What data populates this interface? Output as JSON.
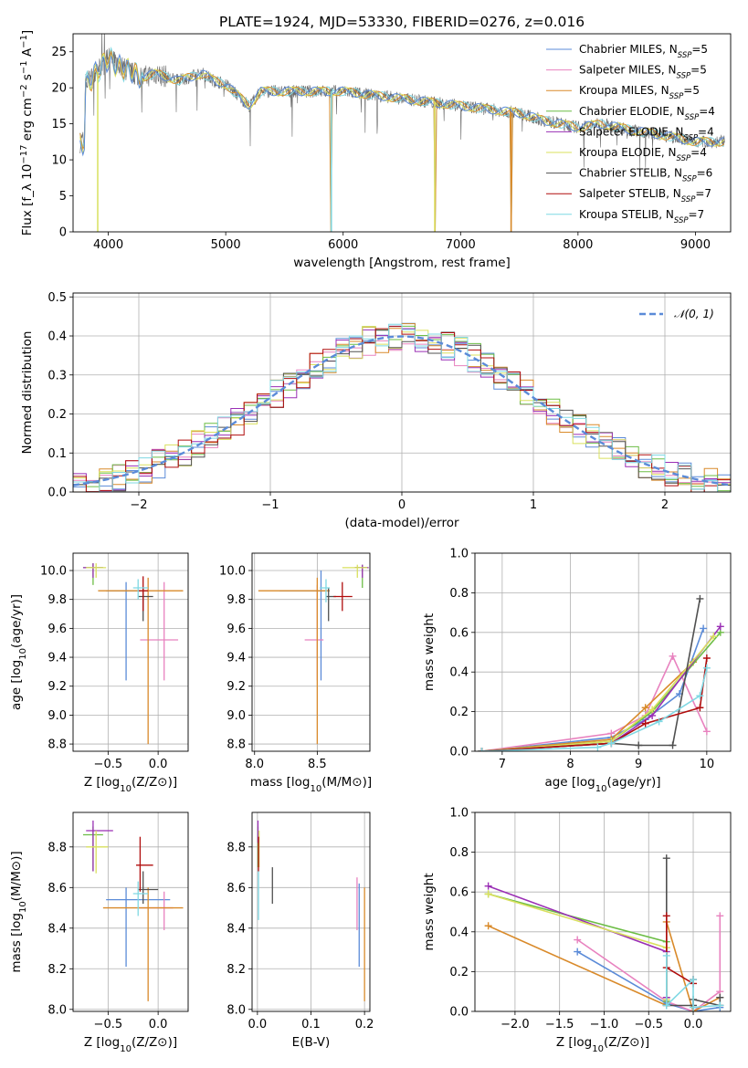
{
  "figure": {
    "title": "PLATE=1924, MJD=53330, FIBERID=0276, z=0.016"
  },
  "colors": {
    "chabrier_miles": "#5b8bd8",
    "salpeter_miles": "#e882bf",
    "kroupa_miles": "#d98a2a",
    "chabrier_elodie": "#6cbd45",
    "salpeter_elodie": "#9a2fb5",
    "kroupa_elodie": "#d9e05e",
    "chabrier_stelib": "#505050",
    "salpeter_stelib": "#b00d0d",
    "kroupa_stelib": "#7fd8e3",
    "data": "#6b6b6b",
    "gauss": "#5b8bd8",
    "grid": "#b0b0b0"
  },
  "legend_spectrum": [
    {
      "name": "Chabrier MILES",
      "n": "5"
    },
    {
      "name": "Salpeter MILES",
      "n": "5"
    },
    {
      "name": "Kroupa MILES",
      "n": "5"
    },
    {
      "name": "Chabrier ELODIE",
      "n": "4"
    },
    {
      "name": "Salpeter ELODIE",
      "n": "4"
    },
    {
      "name": "Kroupa ELODIE",
      "n": "4"
    },
    {
      "name": "Chabrier STELIB",
      "n": "6"
    },
    {
      "name": "Salpeter STELIB",
      "n": "7"
    },
    {
      "name": "Kroupa STELIB",
      "n": "7"
    }
  ],
  "legend_hist": {
    "label": "𝒩(0, 1)"
  },
  "chart_data": [
    {
      "id": "spectrum",
      "type": "line",
      "title": "PLATE=1924, MJD=53330, FIBERID=0276, z=0.016",
      "xlabel": "wavelength [Angstrom, rest frame]",
      "ylabel": "Flux [f_λ 10^-17 erg cm^-2 s^-1 A^-1]",
      "xlim": [
        3700,
        9300
      ],
      "ylim": [
        0,
        27.5
      ],
      "xticks": [
        4000,
        5000,
        6000,
        7000,
        8000,
        9000
      ],
      "yticks": [
        0,
        5,
        10,
        15,
        20,
        25
      ],
      "continuum": [
        [
          3800,
          20.5
        ],
        [
          3900,
          22
        ],
        [
          4000,
          24
        ],
        [
          4100,
          23
        ],
        [
          4200,
          22
        ],
        [
          4300,
          21.5
        ],
        [
          4400,
          22
        ],
        [
          4600,
          21
        ],
        [
          4800,
          22
        ],
        [
          4900,
          21
        ],
        [
          5000,
          20.5
        ],
        [
          5200,
          17.5
        ],
        [
          5300,
          19.5
        ],
        [
          5500,
          19.5
        ],
        [
          6000,
          19.5
        ],
        [
          6500,
          18.5
        ],
        [
          7000,
          17.5
        ],
        [
          7500,
          16.5
        ],
        [
          7700,
          15.5
        ],
        [
          8000,
          14.5
        ],
        [
          8200,
          15
        ],
        [
          8500,
          14
        ],
        [
          8700,
          13.5
        ],
        [
          9000,
          12.5
        ],
        [
          9250,
          12.5
        ]
      ],
      "dips": [
        {
          "x": 3910,
          "y": 0
        },
        {
          "x": 5900,
          "y": 0
        },
        {
          "x": 6780,
          "y": 0
        },
        {
          "x": 7430,
          "y": 0
        }
      ]
    },
    {
      "id": "residuals",
      "type": "bar",
      "xlabel": "(data-model)/error",
      "ylabel": "Normed distribution",
      "xlim": [
        -2.5,
        2.5
      ],
      "ylim": [
        0,
        0.51
      ],
      "xticks": [
        -2,
        -1,
        0,
        1,
        2
      ],
      "yticks": [
        0.0,
        0.1,
        0.2,
        0.3,
        0.4,
        0.5
      ],
      "bin_width": 0.1,
      "reference": {
        "name": "𝒩(0, 1)",
        "mu": 0,
        "sigma": 1
      }
    },
    {
      "id": "age_vs_Z",
      "type": "scatter",
      "xlabel": "Z [log10(Z/Z⊙)]",
      "ylabel": "age [log10(age/yr)]",
      "xlim": [
        -0.85,
        0.3
      ],
      "ylim": [
        8.75,
        10.12
      ],
      "xticks": [
        -0.5,
        0.0
      ],
      "yticks": [
        8.8,
        9.0,
        9.2,
        9.4,
        9.6,
        9.8,
        10.0
      ],
      "points": [
        {
          "s": "chabrier_miles",
          "x": -0.32,
          "y": 9.86,
          "xe": [
            -0.52,
            -0.12
          ],
          "ye": [
            9.24,
            9.92
          ]
        },
        {
          "s": "salpeter_miles",
          "x": 0.06,
          "y": 9.52,
          "xe": [
            -0.18,
            0.2
          ],
          "ye": [
            9.24,
            9.92
          ]
        },
        {
          "s": "kroupa_miles",
          "x": -0.1,
          "y": 9.86,
          "xe": [
            -0.6,
            0.25
          ],
          "ye": [
            8.8,
            9.95
          ]
        },
        {
          "s": "chabrier_elodie",
          "x": -0.65,
          "y": 10.02,
          "xe": [
            -0.75,
            -0.55
          ],
          "ye": [
            9.9,
            10.05
          ]
        },
        {
          "s": "salpeter_elodie",
          "x": -0.65,
          "y": 10.02,
          "xe": [
            -0.75,
            -0.55
          ],
          "ye": [
            9.95,
            10.05
          ]
        },
        {
          "s": "kroupa_elodie",
          "x": -0.62,
          "y": 10.02,
          "xe": [
            -0.72,
            -0.52
          ],
          "ye": [
            9.95,
            10.05
          ]
        },
        {
          "s": "chabrier_stelib",
          "x": -0.15,
          "y": 9.82,
          "xe": [
            -0.2,
            -0.05
          ],
          "ye": [
            9.65,
            9.88
          ]
        },
        {
          "s": "salpeter_stelib",
          "x": -0.15,
          "y": 9.86,
          "xe": [
            -0.2,
            -0.1
          ],
          "ye": [
            9.72,
            9.96
          ]
        },
        {
          "s": "kroupa_stelib",
          "x": -0.2,
          "y": 9.88,
          "xe": [
            -0.25,
            -0.1
          ],
          "ye": [
            9.8,
            9.94
          ]
        }
      ]
    },
    {
      "id": "age_vs_mass",
      "type": "scatter",
      "xlabel": "mass [log10(M/M⊙)]",
      "ylabel": "",
      "xlim": [
        7.98,
        8.92
      ],
      "ylim": [
        8.75,
        10.12
      ],
      "xticks": [
        8.0,
        8.5
      ],
      "yticks": [
        8.8,
        9.0,
        9.2,
        9.4,
        9.6,
        9.8,
        10.0
      ],
      "points": [
        {
          "s": "chabrier_miles",
          "x": 8.53,
          "y": 9.86,
          "xe": [
            8.2,
            8.56
          ],
          "ye": [
            9.24,
            10.0
          ]
        },
        {
          "s": "salpeter_miles",
          "x": 8.5,
          "y": 9.52,
          "xe": [
            8.4,
            8.55
          ],
          "ye": [
            9.24,
            9.9
          ]
        },
        {
          "s": "kroupa_miles",
          "x": 8.5,
          "y": 9.86,
          "xe": [
            8.03,
            8.6
          ],
          "ye": [
            8.8,
            9.95
          ]
        },
        {
          "s": "chabrier_elodie",
          "x": 8.86,
          "y": 10.02,
          "xe": [
            8.8,
            8.9
          ],
          "ye": [
            9.88,
            10.04
          ]
        },
        {
          "s": "salpeter_elodie",
          "x": 8.86,
          "y": 10.02,
          "xe": [
            8.8,
            8.91
          ],
          "ye": [
            9.95,
            10.04
          ]
        },
        {
          "s": "kroupa_elodie",
          "x": 8.82,
          "y": 10.02,
          "xe": [
            8.7,
            8.9
          ],
          "ye": [
            9.95,
            10.04
          ]
        },
        {
          "s": "chabrier_stelib",
          "x": 8.59,
          "y": 9.82,
          "xe": [
            8.57,
            8.65
          ],
          "ye": [
            9.65,
            9.88
          ]
        },
        {
          "s": "salpeter_stelib",
          "x": 8.7,
          "y": 9.82,
          "xe": [
            8.63,
            8.78
          ],
          "ye": [
            9.72,
            9.92
          ]
        },
        {
          "s": "kroupa_stelib",
          "x": 8.57,
          "y": 9.88,
          "xe": [
            8.52,
            8.6
          ],
          "ye": [
            9.78,
            9.94
          ]
        }
      ]
    },
    {
      "id": "weight_vs_age",
      "type": "line",
      "xlabel": "age [log10(age/yr)]",
      "ylabel": "mass weight",
      "xlim": [
        6.6,
        10.35
      ],
      "ylim": [
        0,
        1.0
      ],
      "xticks": [
        7,
        8,
        9,
        10
      ],
      "yticks": [
        0.0,
        0.2,
        0.4,
        0.6,
        0.8,
        1.0
      ],
      "series": [
        {
          "s": "chabrier_miles",
          "x": [
            6.7,
            8.6,
            9.1,
            9.6,
            9.95
          ],
          "y": [
            0.0,
            0.07,
            0.16,
            0.29,
            0.62
          ]
        },
        {
          "s": "salpeter_miles",
          "x": [
            6.7,
            8.6,
            9.1,
            9.5,
            10.0
          ],
          "y": [
            0.0,
            0.09,
            0.18,
            0.48,
            0.1
          ]
        },
        {
          "s": "kroupa_miles",
          "x": [
            6.7,
            8.6,
            9.1,
            9.8
          ],
          "y": [
            0.0,
            0.06,
            0.22,
            0.45
          ]
        },
        {
          "s": "chabrier_elodie",
          "x": [
            6.7,
            8.6,
            9.2,
            10.2
          ],
          "y": [
            0.0,
            0.05,
            0.2,
            0.6
          ]
        },
        {
          "s": "salpeter_elodie",
          "x": [
            6.7,
            8.6,
            9.2,
            10.2
          ],
          "y": [
            0.0,
            0.04,
            0.18,
            0.63
          ]
        },
        {
          "s": "kroupa_elodie",
          "x": [
            6.7,
            8.6,
            9.2,
            10.1
          ],
          "y": [
            0.0,
            0.05,
            0.21,
            0.58
          ]
        },
        {
          "s": "chabrier_stelib",
          "x": [
            6.7,
            8.6,
            9.0,
            9.5,
            9.9
          ],
          "y": [
            0.0,
            0.04,
            0.03,
            0.03,
            0.77
          ]
        },
        {
          "s": "salpeter_stelib",
          "x": [
            6.7,
            8.6,
            9.1,
            9.9,
            10.0
          ],
          "y": [
            0.0,
            0.04,
            0.14,
            0.22,
            0.47
          ]
        },
        {
          "s": "kroupa_stelib",
          "x": [
            6.7,
            8.4,
            8.6,
            9.3,
            9.9,
            10.0
          ],
          "y": [
            0.0,
            0.02,
            0.04,
            0.15,
            0.28,
            0.42
          ]
        }
      ]
    },
    {
      "id": "mass_vs_Z",
      "type": "scatter",
      "xlabel": "Z [log10(Z/Z⊙)]",
      "ylabel": "mass [log10(M/M⊙)]",
      "xlim": [
        -0.85,
        0.3
      ],
      "ylim": [
        7.99,
        8.97
      ],
      "xticks": [
        -0.5,
        0.0
      ],
      "yticks": [
        8.0,
        8.2,
        8.4,
        8.6,
        8.8
      ],
      "points": [
        {
          "s": "chabrier_miles",
          "x": -0.32,
          "y": 8.54,
          "xe": [
            -0.52,
            0.12
          ],
          "ye": [
            8.21,
            8.6
          ]
        },
        {
          "s": "salpeter_miles",
          "x": 0.06,
          "y": 8.5,
          "xe": [
            -0.2,
            0.15
          ],
          "ye": [
            8.39,
            8.58
          ]
        },
        {
          "s": "kroupa_miles",
          "x": -0.1,
          "y": 8.5,
          "xe": [
            -0.55,
            0.25
          ],
          "ye": [
            8.04,
            8.6
          ]
        },
        {
          "s": "chabrier_elodie",
          "x": -0.65,
          "y": 8.86,
          "xe": [
            -0.75,
            -0.55
          ],
          "ye": [
            8.68,
            8.9
          ]
        },
        {
          "s": "salpeter_elodie",
          "x": -0.65,
          "y": 8.88,
          "xe": [
            -0.72,
            -0.45
          ],
          "ye": [
            8.68,
            8.93
          ]
        },
        {
          "s": "kroupa_elodie",
          "x": -0.62,
          "y": 8.8,
          "xe": [
            -0.72,
            -0.5
          ],
          "ye": [
            8.67,
            8.88
          ]
        },
        {
          "s": "chabrier_stelib",
          "x": -0.15,
          "y": 8.59,
          "xe": [
            -0.2,
            0.0
          ],
          "ye": [
            8.52,
            8.68
          ]
        },
        {
          "s": "salpeter_stelib",
          "x": -0.18,
          "y": 8.71,
          "xe": [
            -0.22,
            -0.05
          ],
          "ye": [
            8.58,
            8.85
          ]
        },
        {
          "s": "kroupa_stelib",
          "x": -0.2,
          "y": 8.57,
          "xe": [
            -0.25,
            -0.1
          ],
          "ye": [
            8.46,
            8.63
          ]
        }
      ]
    },
    {
      "id": "mass_vs_EBV",
      "type": "scatter",
      "xlabel": "E(B-V)",
      "ylabel": "",
      "xlim": [
        -0.01,
        0.21
      ],
      "ylim": [
        7.99,
        8.97
      ],
      "xticks": [
        0.0,
        0.1,
        0.2
      ],
      "yticks": [
        8.0,
        8.2,
        8.4,
        8.6,
        8.8
      ],
      "points": [
        {
          "s": "chabrier_miles",
          "x": 0.19,
          "y": 8.54,
          "ye": [
            8.21,
            8.62
          ]
        },
        {
          "s": "salpeter_miles",
          "x": 0.186,
          "y": 8.5,
          "ye": [
            8.39,
            8.65
          ]
        },
        {
          "s": "kroupa_miles",
          "x": 0.2,
          "y": 8.5,
          "ye": [
            8.04,
            8.6
          ]
        },
        {
          "s": "chabrier_elodie",
          "x": 0.001,
          "y": 8.8,
          "ye": [
            8.7,
            8.9
          ]
        },
        {
          "s": "salpeter_elodie",
          "x": 0.001,
          "y": 8.88,
          "ye": [
            8.82,
            8.93
          ]
        },
        {
          "s": "kroupa_elodie",
          "x": 0.003,
          "y": 8.8,
          "ye": [
            8.7,
            8.88
          ]
        },
        {
          "s": "chabrier_stelib",
          "x": 0.028,
          "y": 8.6,
          "ye": [
            8.52,
            8.7
          ]
        },
        {
          "s": "salpeter_stelib",
          "x": 0.002,
          "y": 8.76,
          "ye": [
            8.68,
            8.85
          ]
        },
        {
          "s": "kroupa_stelib",
          "x": 0.002,
          "y": 8.57,
          "ye": [
            8.44,
            8.68
          ]
        }
      ]
    },
    {
      "id": "weight_vs_Z",
      "type": "line",
      "xlabel": "Z [log10(Z/Z⊙)]",
      "ylabel": "mass weight",
      "xlim": [
        -2.45,
        0.42
      ],
      "ylim": [
        0,
        1.0
      ],
      "xticks": [
        -2.0,
        -1.5,
        -1.0,
        -0.5,
        0.0
      ],
      "yticks": [
        0.0,
        0.2,
        0.4,
        0.6,
        0.8,
        1.0
      ],
      "series": [
        {
          "s": "chabrier_miles",
          "x": [
            -1.3,
            -0.3,
            0.0,
            0.3
          ],
          "y": [
            0.3,
            0.04,
            0.0,
            0.02
          ]
        },
        {
          "s": "salpeter_miles",
          "x": [
            -1.3,
            -0.3,
            0.0,
            0.3,
            0.3
          ],
          "y": [
            0.36,
            0.05,
            0.0,
            0.1,
            0.48
          ]
        },
        {
          "s": "kroupa_miles",
          "x": [
            -2.3,
            -0.3,
            -0.3,
            0.0,
            0.3
          ],
          "y": [
            0.43,
            0.03,
            0.45,
            0.0,
            0.07
          ]
        },
        {
          "s": "chabrier_elodie",
          "x": [
            -2.3,
            -0.3,
            -0.3
          ],
          "y": [
            0.59,
            0.35,
            0.05
          ]
        },
        {
          "s": "salpeter_elodie",
          "x": [
            -2.3,
            -0.3,
            -0.3
          ],
          "y": [
            0.63,
            0.3,
            0.07
          ]
        },
        {
          "s": "kroupa_elodie",
          "x": [
            -2.3,
            -0.3,
            -0.3
          ],
          "y": [
            0.59,
            0.32,
            0.06
          ]
        },
        {
          "s": "chabrier_stelib",
          "x": [
            -0.3,
            -0.3,
            0.0,
            0.0,
            0.3,
            0.3
          ],
          "y": [
            0.77,
            0.03,
            0.03,
            0.06,
            0.03,
            0.07
          ]
        },
        {
          "s": "salpeter_stelib",
          "x": [
            -0.3,
            -0.3,
            0.0,
            0.0
          ],
          "y": [
            0.48,
            0.22,
            0.14,
            0.16
          ]
        },
        {
          "s": "kroupa_stelib",
          "x": [
            -0.3,
            -0.3,
            0.0,
            0.0,
            0.3
          ],
          "y": [
            0.28,
            0.03,
            0.16,
            0.02,
            0.03
          ]
        }
      ]
    }
  ]
}
